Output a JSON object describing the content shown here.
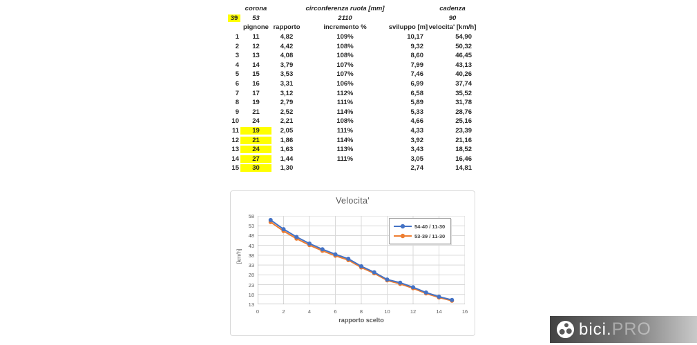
{
  "table": {
    "corona_label": "corona",
    "circonferenza_label": "circonferenza ruota [mm]",
    "cadenza_label": "cadenza",
    "corona_small_value": "39",
    "corona_value": "53",
    "circonferenza_value": "2110",
    "cadenza_value": "90",
    "col_pignone": "pignone",
    "col_rapporto": "rapporto",
    "col_incremento": "incremento %",
    "col_sviluppo": "sviluppo [m]",
    "col_velocita": "velocita' [km/h]",
    "rows": [
      {
        "n": "1",
        "pignone": "11",
        "rapporto": "4,82",
        "incremento": "109%",
        "sviluppo": "10,17",
        "velocita": "54,90",
        "hl": false
      },
      {
        "n": "2",
        "pignone": "12",
        "rapporto": "4,42",
        "incremento": "108%",
        "sviluppo": "9,32",
        "velocita": "50,32",
        "hl": false
      },
      {
        "n": "3",
        "pignone": "13",
        "rapporto": "4,08",
        "incremento": "108%",
        "sviluppo": "8,60",
        "velocita": "46,45",
        "hl": false
      },
      {
        "n": "4",
        "pignone": "14",
        "rapporto": "3,79",
        "incremento": "107%",
        "sviluppo": "7,99",
        "velocita": "43,13",
        "hl": false
      },
      {
        "n": "5",
        "pignone": "15",
        "rapporto": "3,53",
        "incremento": "107%",
        "sviluppo": "7,46",
        "velocita": "40,26",
        "hl": false
      },
      {
        "n": "6",
        "pignone": "16",
        "rapporto": "3,31",
        "incremento": "106%",
        "sviluppo": "6,99",
        "velocita": "37,74",
        "hl": false
      },
      {
        "n": "7",
        "pignone": "17",
        "rapporto": "3,12",
        "incremento": "112%",
        "sviluppo": "6,58",
        "velocita": "35,52",
        "hl": false
      },
      {
        "n": "8",
        "pignone": "19",
        "rapporto": "2,79",
        "incremento": "111%",
        "sviluppo": "5,89",
        "velocita": "31,78",
        "hl": false
      },
      {
        "n": "9",
        "pignone": "21",
        "rapporto": "2,52",
        "incremento": "114%",
        "sviluppo": "5,33",
        "velocita": "28,76",
        "hl": false
      },
      {
        "n": "10",
        "pignone": "24",
        "rapporto": "2,21",
        "incremento": "108%",
        "sviluppo": "4,66",
        "velocita": "25,16",
        "hl": false
      },
      {
        "n": "11",
        "pignone": "19",
        "rapporto": "2,05",
        "incremento": "111%",
        "sviluppo": "4,33",
        "velocita": "23,39",
        "hl": true
      },
      {
        "n": "12",
        "pignone": "21",
        "rapporto": "1,86",
        "incremento": "114%",
        "sviluppo": "3,92",
        "velocita": "21,16",
        "hl": true
      },
      {
        "n": "13",
        "pignone": "24",
        "rapporto": "1,63",
        "incremento": "113%",
        "sviluppo": "3,43",
        "velocita": "18,52",
        "hl": true
      },
      {
        "n": "14",
        "pignone": "27",
        "rapporto": "1,44",
        "incremento": "111%",
        "sviluppo": "3,05",
        "velocita": "16,46",
        "hl": true
      },
      {
        "n": "15",
        "pignone": "30",
        "rapporto": "1,30",
        "incremento": "",
        "sviluppo": "2,74",
        "velocita": "14,81",
        "hl": true
      }
    ],
    "highlight_color": "#ffff00"
  },
  "chart_data": {
    "type": "line",
    "title": "Velocita'",
    "xlabel": "rapporto scelto",
    "ylabel": "[km/h]",
    "x": [
      1,
      2,
      3,
      4,
      5,
      6,
      7,
      8,
      9,
      10,
      11,
      12,
      13,
      14,
      15
    ],
    "series": [
      {
        "name": "54-40 / 11-30",
        "color": "#4472C4",
        "values": [
          55.94,
          51.27,
          47.33,
          43.94,
          41.02,
          38.45,
          36.19,
          32.38,
          29.3,
          25.63,
          23.99,
          21.7,
          19.0,
          16.88,
          15.19
        ]
      },
      {
        "name": "53-39 / 11-30",
        "color": "#ED7D31",
        "values": [
          54.9,
          50.32,
          46.45,
          43.13,
          40.26,
          37.74,
          35.52,
          31.78,
          28.76,
          25.16,
          23.39,
          21.16,
          18.52,
          16.46,
          14.81
        ]
      }
    ],
    "xlim": [
      0,
      16
    ],
    "ylim": [
      13,
      58
    ],
    "x_ticks": [
      0,
      2,
      4,
      6,
      8,
      10,
      12,
      14,
      16
    ],
    "y_ticks": [
      13,
      18,
      23,
      28,
      33,
      38,
      43,
      48,
      53,
      58
    ],
    "grid": true,
    "legend_position": "upper right",
    "gridline_color": "#d9d9d9",
    "axis_color": "#9b9b9b"
  },
  "watermark": {
    "brand": "bici.",
    "suffix": "PRO"
  }
}
